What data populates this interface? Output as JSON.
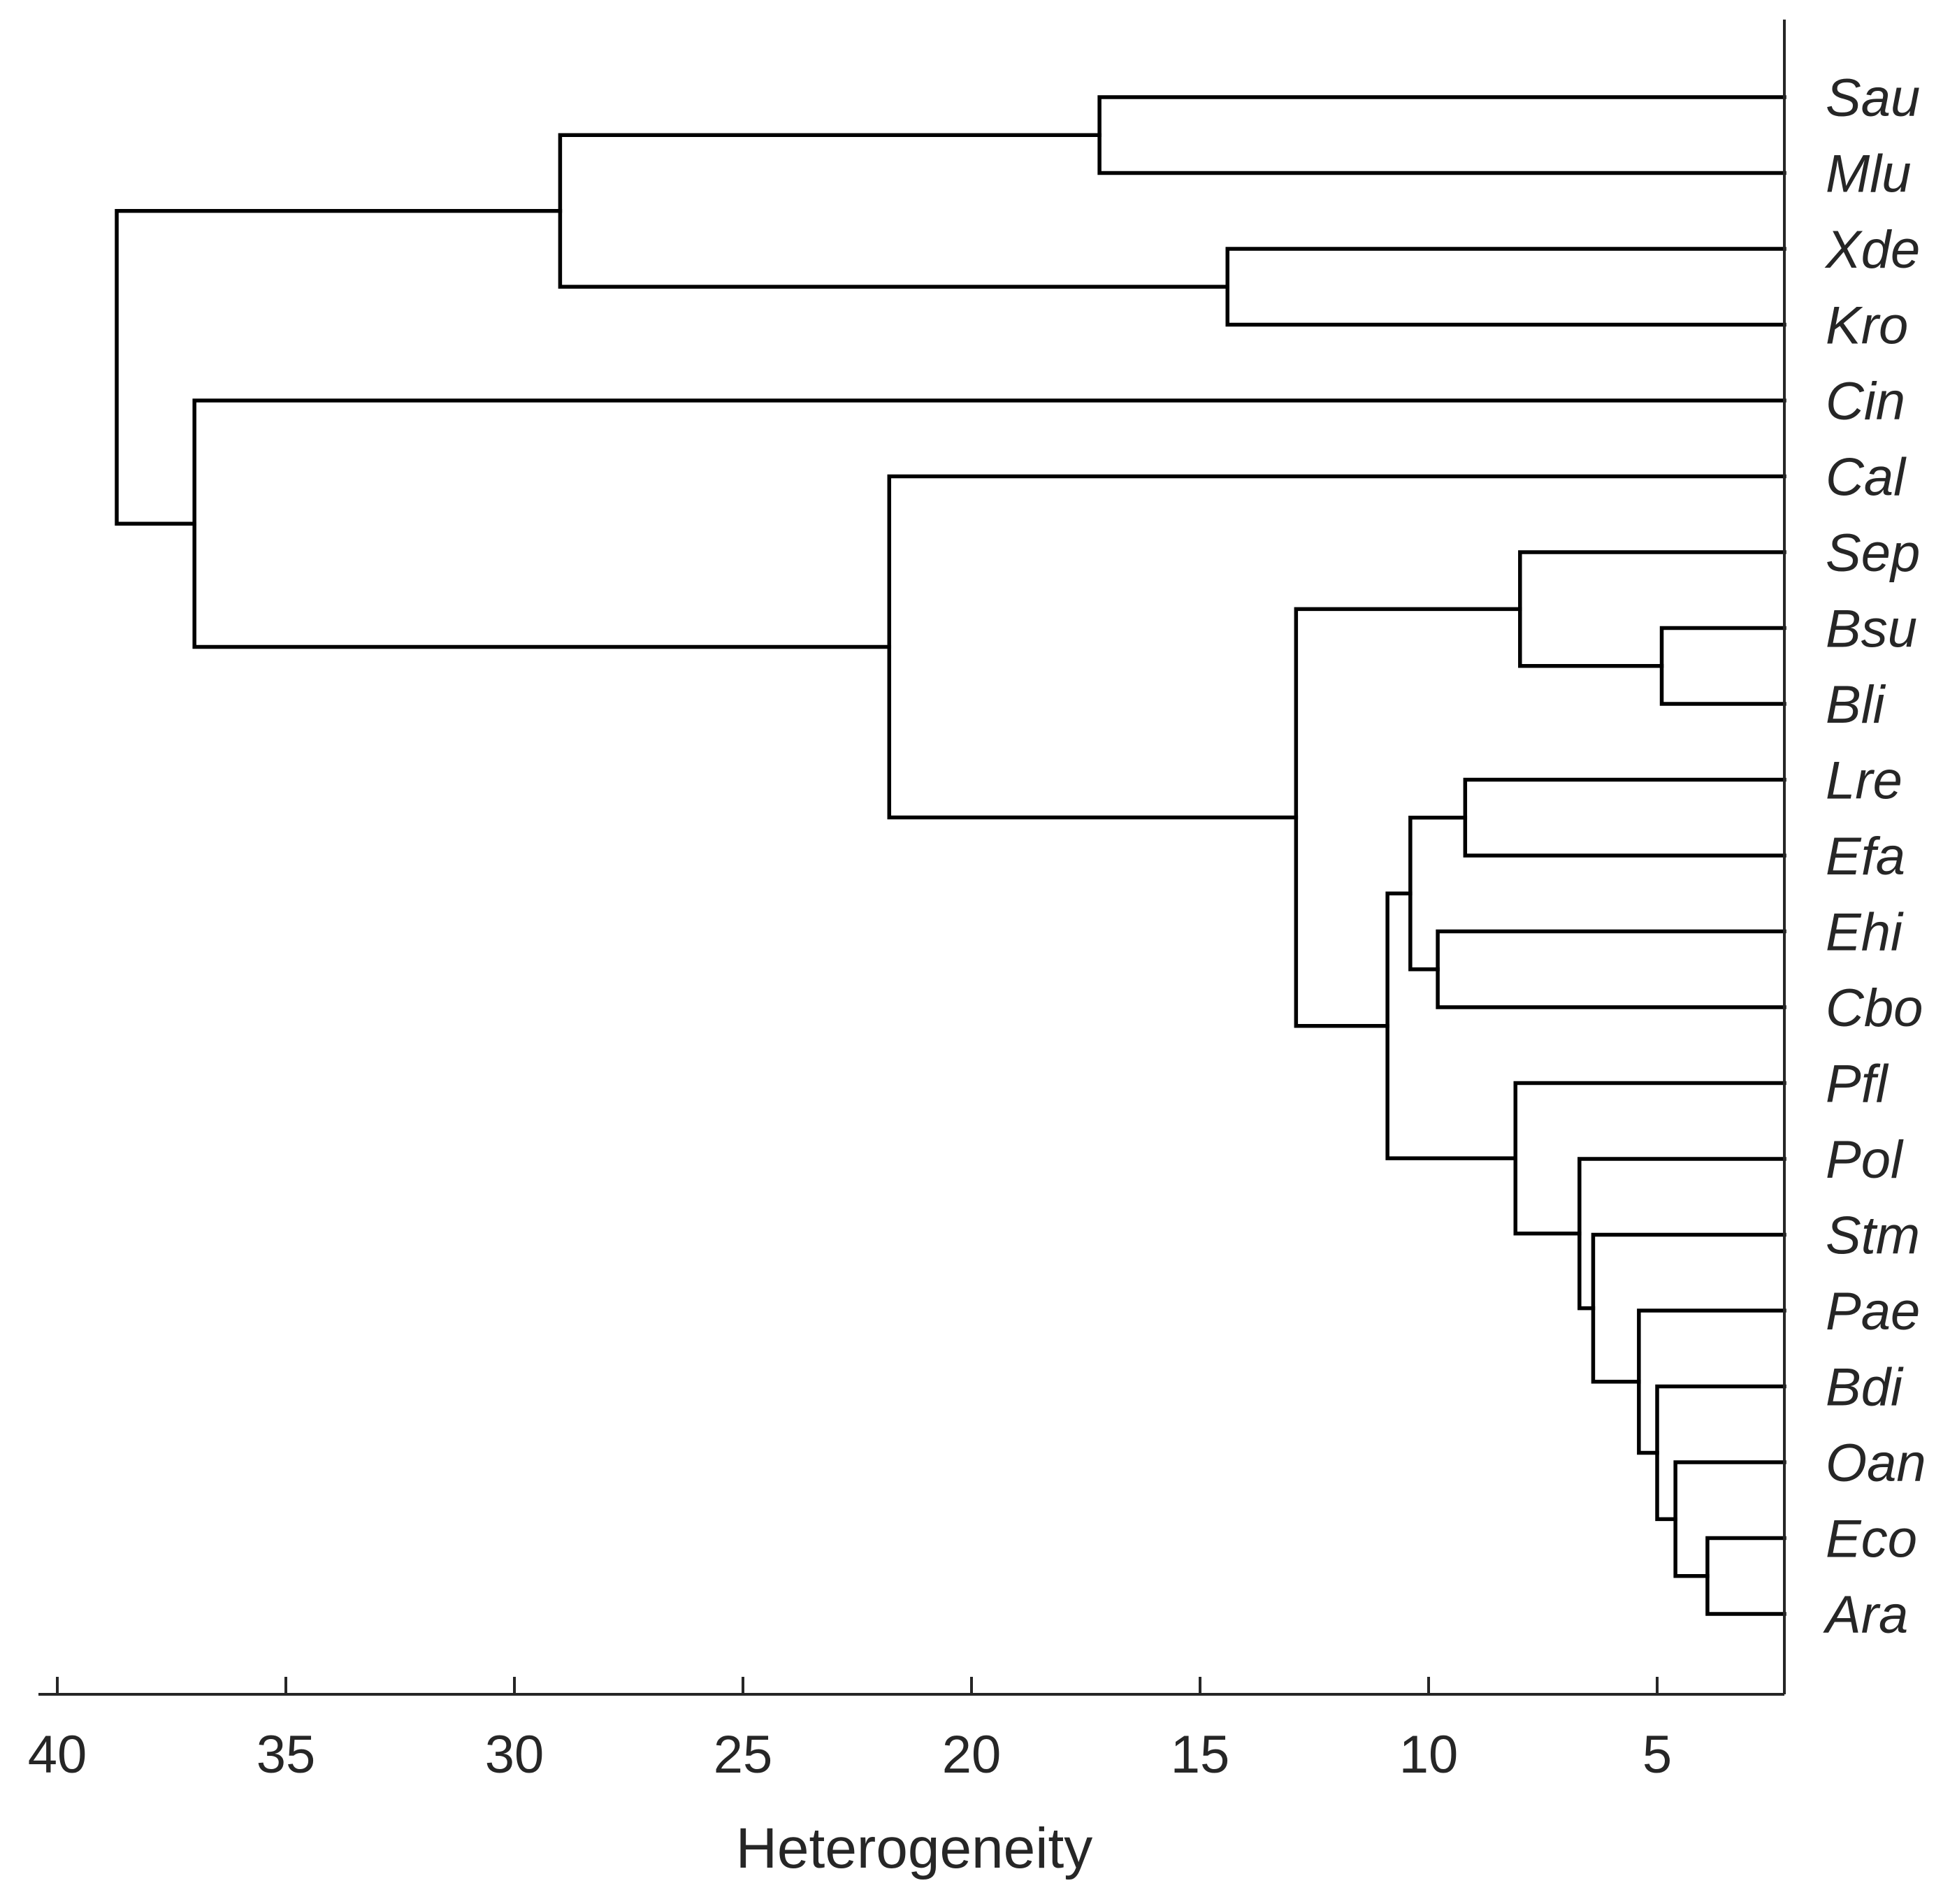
{
  "chart_data": {
    "type": "dendrogram",
    "orientation": "horizontal",
    "xlabel": "Heterogeneity",
    "x_range": [
      40.5,
      2.5
    ],
    "x_ticks": [
      40,
      35,
      30,
      25,
      20,
      15,
      10,
      5
    ],
    "leaves": [
      "Sau",
      "Mlu",
      "Xde",
      "Kro",
      "Cin",
      "Cal",
      "Sep",
      "Bsu",
      "Bli",
      "Lre",
      "Efa",
      "Ehi",
      "Cbo",
      "Pfl",
      "Pol",
      "Stm",
      "Pae",
      "Bdi",
      "Oan",
      "Eco",
      "Ara"
    ],
    "merges": [
      {
        "id": "m1",
        "left": "Sau",
        "right": "Mlu",
        "height": 17.2
      },
      {
        "id": "m2",
        "left": "Xde",
        "right": "Kro",
        "height": 14.4
      },
      {
        "id": "m3",
        "left": "m1",
        "right": "m2",
        "height": 29.0
      },
      {
        "id": "m4",
        "left": "Bsu",
        "right": "Bli",
        "height": 4.9
      },
      {
        "id": "m5",
        "left": "Sep",
        "right": "m4",
        "height": 8.0
      },
      {
        "id": "m6",
        "left": "Lre",
        "right": "Efa",
        "height": 9.2
      },
      {
        "id": "m7",
        "left": "Ehi",
        "right": "Cbo",
        "height": 9.8
      },
      {
        "id": "m8",
        "left": "m6",
        "right": "m7",
        "height": 10.4
      },
      {
        "id": "m9",
        "left": "Eco",
        "right": "Ara",
        "height": 3.9
      },
      {
        "id": "m10",
        "left": "Oan",
        "right": "m9",
        "height": 4.6
      },
      {
        "id": "m11",
        "left": "Bdi",
        "right": "m10",
        "height": 5.0
      },
      {
        "id": "m12",
        "left": "Pae",
        "right": "m11",
        "height": 5.4
      },
      {
        "id": "m13",
        "left": "Stm",
        "right": "m12",
        "height": 6.4
      },
      {
        "id": "m14",
        "left": "Pol",
        "right": "m13",
        "height": 6.7
      },
      {
        "id": "m15",
        "left": "Pfl",
        "right": "m14",
        "height": 8.1
      },
      {
        "id": "m16",
        "left": "m8",
        "right": "m15",
        "height": 10.9
      },
      {
        "id": "m17",
        "left": "m5",
        "right": "m16",
        "height": 12.9
      },
      {
        "id": "m18",
        "left": "Cal",
        "right": "m17",
        "height": 21.8
      },
      {
        "id": "m19",
        "left": "Cin",
        "right": "m18",
        "height": 37.0
      },
      {
        "id": "m20",
        "left": "m3",
        "right": "m19",
        "height": 38.7
      }
    ]
  }
}
